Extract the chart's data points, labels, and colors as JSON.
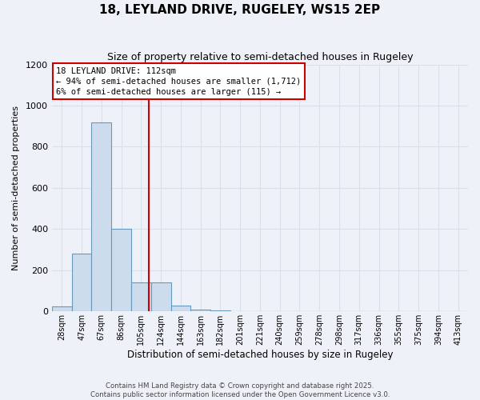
{
  "title": "18, LEYLAND DRIVE, RUGELEY, WS15 2EP",
  "subtitle": "Size of property relative to semi-detached houses in Rugeley",
  "xlabel": "Distribution of semi-detached houses by size in Rugeley",
  "ylabel": "Number of semi-detached properties",
  "categories": [
    "28sqm",
    "47sqm",
    "67sqm",
    "86sqm",
    "105sqm",
    "124sqm",
    "144sqm",
    "163sqm",
    "182sqm",
    "201sqm",
    "221sqm",
    "240sqm",
    "259sqm",
    "278sqm",
    "298sqm",
    "317sqm",
    "336sqm",
    "355sqm",
    "375sqm",
    "394sqm",
    "413sqm"
  ],
  "bar_values": [
    25,
    280,
    920,
    400,
    140,
    140,
    30,
    10,
    5,
    3,
    0,
    2,
    0,
    0,
    0,
    0,
    0,
    0,
    0,
    0,
    0
  ],
  "bar_color": "#ccdcec",
  "bar_edge_color": "#6699bb",
  "property_line_x": 4.37,
  "annotation_title": "18 LEYLAND DRIVE: 112sqm",
  "annotation_line1": "← 94% of semi-detached houses are smaller (1,712)",
  "annotation_line2": "6% of semi-detached houses are larger (115) →",
  "annotation_box_color": "#ffffff",
  "annotation_border_color": "#cc0000",
  "red_line_color": "#cc0000",
  "ylim": [
    0,
    1200
  ],
  "yticks": [
    0,
    200,
    400,
    600,
    800,
    1000,
    1200
  ],
  "footer_line1": "Contains HM Land Registry data © Crown copyright and database right 2025.",
  "footer_line2": "Contains public sector information licensed under the Open Government Licence v3.0.",
  "bg_color": "#eef2f8",
  "grid_color": "#d8e0ec"
}
